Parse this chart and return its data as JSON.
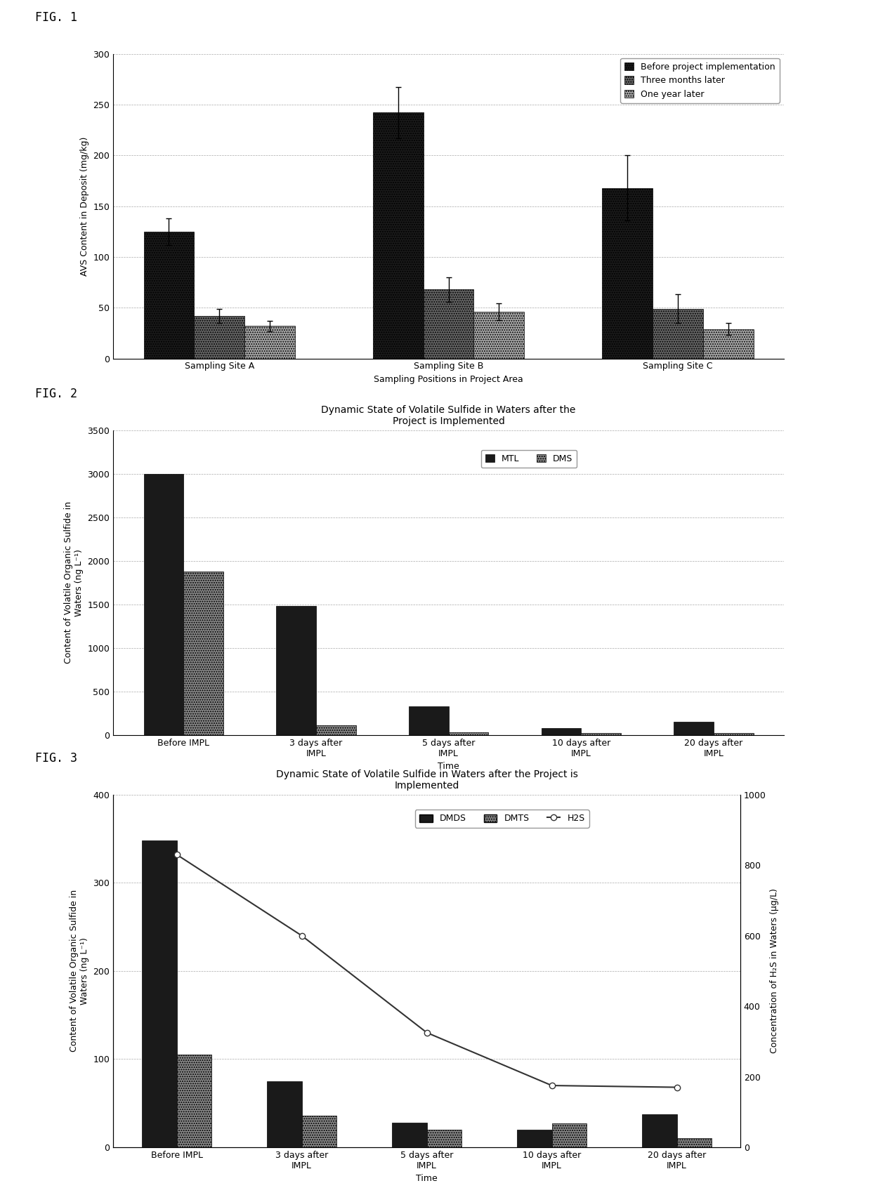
{
  "fig1": {
    "xlabel": "Sampling Positions in Project Area",
    "ylabel": "AVS Content in Deposit (mg/kg)",
    "categories": [
      "Sampling Site A",
      "Sampling Site B",
      "Sampling Site C"
    ],
    "series": [
      {
        "label": "Before project implementation",
        "color": "#1a1a1a",
        "hatch": ".....",
        "values": [
          125,
          242,
          168
        ],
        "errors": [
          13,
          25,
          32
        ]
      },
      {
        "label": "Three months later",
        "color": "#666666",
        "hatch": ".....",
        "values": [
          42,
          68,
          49
        ],
        "errors": [
          7,
          12,
          14
        ]
      },
      {
        "label": "One year later",
        "color": "#aaaaaa",
        "hatch": ".....",
        "values": [
          32,
          46,
          29
        ],
        "errors": [
          5,
          8,
          6
        ]
      }
    ],
    "ylim": [
      0,
      300
    ],
    "yticks": [
      0,
      50,
      100,
      150,
      200,
      250,
      300
    ]
  },
  "fig2": {
    "title": "Dynamic State of Volatile Sulfide in Waters after the\nProject is Implemented",
    "xlabel": "Time",
    "ylabel": "Content of Volatile Organic Sulfide in\nWaters (ng L⁻¹)",
    "categories": [
      "Before IMPL",
      "3 days after\nIMPL",
      "5 days after\nIMPL",
      "10 days after\nIMPL",
      "20 days after\nIMPL"
    ],
    "series": [
      {
        "label": "MTL",
        "color": "#1a1a1a",
        "hatch": "",
        "values": [
          3000,
          1480,
          330,
          80,
          155
        ]
      },
      {
        "label": "DMS",
        "color": "#888888",
        "hatch": ".....",
        "values": [
          1880,
          110,
          30,
          20,
          20
        ]
      }
    ],
    "ylim": [
      0,
      3500
    ],
    "yticks": [
      0,
      500,
      1000,
      1500,
      2000,
      2500,
      3000,
      3500
    ]
  },
  "fig3": {
    "title": "Dynamic State of Volatile Sulfide in Waters after the Project is\nImplemented",
    "xlabel": "Time",
    "ylabel_left": "Content of Volatile Organic Sulfide in\nWaters (ng L⁻¹)",
    "ylabel_right": "Concentration of H₂S in Waters (μg/L)",
    "categories": [
      "Before IMPL",
      "3 days after\nIMPL",
      "5 days after\nIMPL",
      "10 days after\nIMPL",
      "20 days after\nIMPL"
    ],
    "bar_series": [
      {
        "label": "DMDS",
        "color": "#1a1a1a",
        "hatch": "",
        "values": [
          348,
          75,
          28,
          20,
          37
        ]
      },
      {
        "label": "DMTS",
        "color": "#888888",
        "hatch": ".....",
        "values": [
          105,
          36,
          20,
          27,
          10
        ]
      }
    ],
    "line_series": {
      "label": "H2S",
      "color": "#333333",
      "marker": "o",
      "values": [
        830,
        600,
        325,
        175,
        170
      ],
      "x_positions": [
        0,
        1,
        2,
        3,
        4
      ]
    },
    "ylim_left": [
      0,
      400
    ],
    "yticks_left": [
      0,
      100,
      200,
      300,
      400
    ],
    "ylim_right": [
      0,
      1000
    ],
    "yticks_right": [
      0,
      200,
      400,
      600,
      800,
      1000
    ]
  },
  "fig_label_fontsize": 12,
  "axis_label_fontsize": 9,
  "tick_fontsize": 9,
  "legend_fontsize": 9,
  "title_fontsize": 10,
  "background_color": "#ffffff"
}
